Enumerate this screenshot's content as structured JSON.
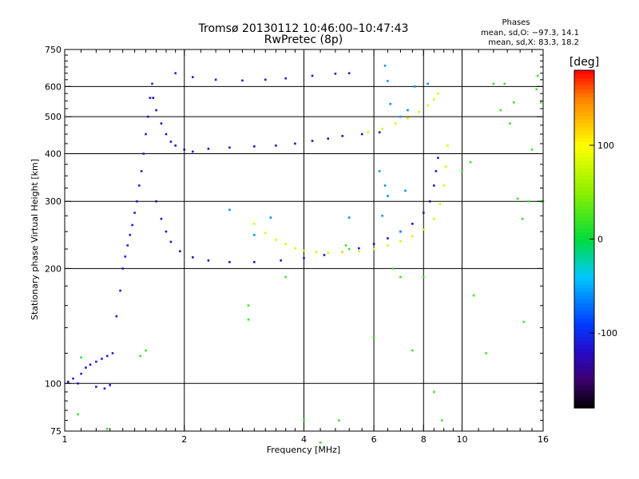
{
  "chart_data": {
    "type": "scatter",
    "title": "Tromsø 20130112 10:46:00–10:47:43",
    "subtitle": "RwPretec (8p)",
    "xlabel": "Frequency [MHz]",
    "ylabel": "Stationary phase Virtual Height [km]",
    "x_scale": "log",
    "y_scale": "log",
    "xlim": [
      1,
      16
    ],
    "ylim": [
      75,
      750
    ],
    "x_ticks": [
      1,
      2,
      4,
      6,
      8,
      10,
      16
    ],
    "x_tick_labels": [
      "1",
      "2",
      "4",
      "6",
      "8",
      "10",
      "16"
    ],
    "y_ticks": [
      75,
      100,
      200,
      300,
      400,
      500,
      600,
      750
    ],
    "y_tick_labels": [
      "75",
      "100",
      "200",
      "300",
      "400",
      "500",
      "600",
      "750"
    ],
    "x_minor_ticks": [
      1.1,
      1.2,
      1.3,
      1.4,
      1.5,
      1.6,
      1.7,
      1.8,
      1.9,
      2.2,
      2.4,
      2.6,
      2.8,
      3.0,
      3.2,
      3.4,
      3.6,
      3.8,
      4.4,
      4.8,
      5.2,
      5.6,
      6.5,
      7.0,
      7.5,
      8.5,
      9.0,
      9.5,
      11,
      12,
      13,
      14,
      15
    ],
    "y_minor_ticks": [
      80,
      85,
      90,
      95,
      120,
      140,
      160,
      180,
      225,
      250,
      275,
      325,
      350,
      375,
      425,
      450,
      475,
      525,
      550,
      575,
      625,
      650,
      675,
      700,
      725
    ],
    "grid": true,
    "colorbar": {
      "label": "[deg]",
      "range": [
        -180,
        180
      ],
      "ticks": [
        100,
        0,
        -100
      ],
      "tick_labels": [
        "100",
        "0",
        "-100"
      ]
    },
    "stats": {
      "heading": "Phases",
      "o_line": "mean, sd,O: −97.3, 14.1",
      "x_line": "mean, sd,X:  83.3, 18.2"
    },
    "traces": [
      {
        "name": "",
        "phase": -110,
        "points": [
          [
            1.02,
            101
          ],
          [
            1.05,
            103
          ],
          [
            1.08,
            100
          ],
          [
            1.1,
            106
          ],
          [
            1.13,
            110
          ],
          [
            1.16,
            112
          ],
          [
            1.2,
            114
          ],
          [
            1.24,
            116
          ],
          [
            1.28,
            118
          ],
          [
            1.32,
            120
          ],
          [
            1.2,
            98
          ],
          [
            1.26,
            97
          ],
          [
            1.3,
            99
          ]
        ]
      },
      {
        "name": "",
        "phase": -110,
        "points": [
          [
            1.35,
            150
          ],
          [
            1.38,
            175
          ],
          [
            1.4,
            200
          ],
          [
            1.42,
            215
          ],
          [
            1.44,
            230
          ],
          [
            1.46,
            245
          ],
          [
            1.48,
            260
          ],
          [
            1.5,
            280
          ],
          [
            1.52,
            300
          ],
          [
            1.54,
            330
          ],
          [
            1.56,
            360
          ],
          [
            1.58,
            400
          ],
          [
            1.6,
            450
          ],
          [
            1.62,
            500
          ],
          [
            1.64,
            560
          ],
          [
            1.66,
            610
          ]
        ]
      },
      {
        "name": "",
        "phase": -120,
        "points": [
          [
            1.67,
            560
          ],
          [
            1.7,
            520
          ],
          [
            1.75,
            480
          ],
          [
            1.8,
            450
          ],
          [
            1.85,
            430
          ],
          [
            1.9,
            420
          ],
          [
            2.0,
            410
          ],
          [
            2.1,
            405
          ],
          [
            2.3,
            412
          ],
          [
            2.6,
            415
          ],
          [
            3.0,
            418
          ],
          [
            3.4,
            420
          ],
          [
            3.8,
            425
          ],
          [
            4.2,
            432
          ],
          [
            4.6,
            438
          ],
          [
            5.0,
            445
          ],
          [
            5.6,
            450
          ],
          [
            6.2,
            455
          ]
        ]
      },
      {
        "name": "",
        "phase": -120,
        "points": [
          [
            1.7,
            300
          ],
          [
            1.75,
            270
          ],
          [
            1.8,
            250
          ],
          [
            1.85,
            235
          ],
          [
            1.95,
            222
          ],
          [
            2.1,
            214
          ],
          [
            2.3,
            210
          ],
          [
            2.6,
            208
          ],
          [
            3.0,
            208
          ],
          [
            3.5,
            210
          ],
          [
            4.0,
            213
          ],
          [
            4.5,
            217
          ],
          [
            5.0,
            221
          ],
          [
            5.5,
            226
          ],
          [
            6.0,
            232
          ],
          [
            6.5,
            240
          ],
          [
            7.0,
            250
          ],
          [
            7.5,
            262
          ],
          [
            8.0,
            280
          ],
          [
            8.3,
            300
          ],
          [
            8.5,
            330
          ],
          [
            8.6,
            360
          ],
          [
            8.7,
            390
          ]
        ]
      },
      {
        "name": "",
        "phase": 80,
        "points": [
          [
            3.0,
            262
          ],
          [
            3.2,
            248
          ],
          [
            3.4,
            238
          ],
          [
            3.6,
            232
          ],
          [
            3.8,
            226
          ],
          [
            4.0,
            223
          ],
          [
            4.3,
            221
          ],
          [
            4.6,
            220
          ],
          [
            5.0,
            221
          ],
          [
            5.5,
            222
          ],
          [
            6.0,
            225
          ],
          [
            6.5,
            230
          ],
          [
            7.0,
            236
          ],
          [
            7.5,
            243
          ],
          [
            8.0,
            253
          ],
          [
            8.5,
            270
          ],
          [
            8.8,
            295
          ],
          [
            9.0,
            330
          ],
          [
            9.1,
            370
          ],
          [
            9.2,
            420
          ]
        ]
      },
      {
        "name": "",
        "phase": 80,
        "points": [
          [
            5.8,
            455
          ],
          [
            6.3,
            465
          ],
          [
            6.8,
            480
          ],
          [
            7.3,
            495
          ],
          [
            7.8,
            515
          ],
          [
            8.2,
            535
          ],
          [
            8.5,
            555
          ],
          [
            8.7,
            575
          ]
        ]
      },
      {
        "name": "",
        "phase": -110,
        "points": [
          [
            1.9,
            650
          ],
          [
            2.1,
            635
          ],
          [
            2.4,
            625
          ],
          [
            2.8,
            622
          ],
          [
            3.2,
            625
          ],
          [
            3.6,
            630
          ],
          [
            4.2,
            640
          ],
          [
            4.8,
            648
          ],
          [
            5.2,
            650
          ]
        ]
      },
      {
        "name": "",
        "phase": -60,
        "points": [
          [
            6.4,
            680
          ],
          [
            6.5,
            620
          ],
          [
            6.6,
            540
          ],
          [
            7.0,
            500
          ],
          [
            7.3,
            520
          ],
          [
            7.6,
            600
          ],
          [
            8.2,
            610
          ],
          [
            6.2,
            360
          ],
          [
            6.4,
            330
          ],
          [
            6.5,
            310
          ],
          [
            6.3,
            275
          ],
          [
            7.2,
            320
          ],
          [
            7.0,
            250
          ],
          [
            5.2,
            272
          ],
          [
            3.3,
            272
          ],
          [
            2.6,
            285
          ],
          [
            3.0,
            245
          ]
        ]
      },
      {
        "name": "",
        "phase": 20,
        "points": [
          [
            1.1,
            117
          ],
          [
            1.08,
            83
          ],
          [
            1.28,
            76
          ],
          [
            1.55,
            118
          ],
          [
            1.6,
            122
          ],
          [
            2.9,
            160
          ],
          [
            2.9,
            147
          ],
          [
            3.6,
            190
          ],
          [
            4.0,
            80
          ],
          [
            4.4,
            70
          ],
          [
            4.9,
            80
          ],
          [
            5.1,
            230
          ],
          [
            5.2,
            225
          ],
          [
            6.0,
            132
          ],
          [
            6.7,
            200
          ],
          [
            7.0,
            190
          ],
          [
            7.5,
            122
          ],
          [
            8.0,
            190
          ],
          [
            8.5,
            95
          ],
          [
            8.9,
            80
          ],
          [
            10.5,
            380
          ],
          [
            10.7,
            170
          ],
          [
            11.5,
            120
          ],
          [
            12.5,
            520
          ],
          [
            12.8,
            610
          ],
          [
            13.2,
            480
          ],
          [
            13.8,
            305
          ],
          [
            14.2,
            270
          ],
          [
            14.7,
            300
          ],
          [
            15.0,
            410
          ],
          [
            15.4,
            590
          ],
          [
            15.5,
            640
          ],
          [
            15.8,
            545
          ],
          [
            15.8,
            300
          ],
          [
            16.0,
            300
          ],
          [
            14.3,
            145
          ],
          [
            12.0,
            610
          ],
          [
            10.0,
            360
          ],
          [
            13.5,
            545
          ]
        ]
      }
    ]
  }
}
